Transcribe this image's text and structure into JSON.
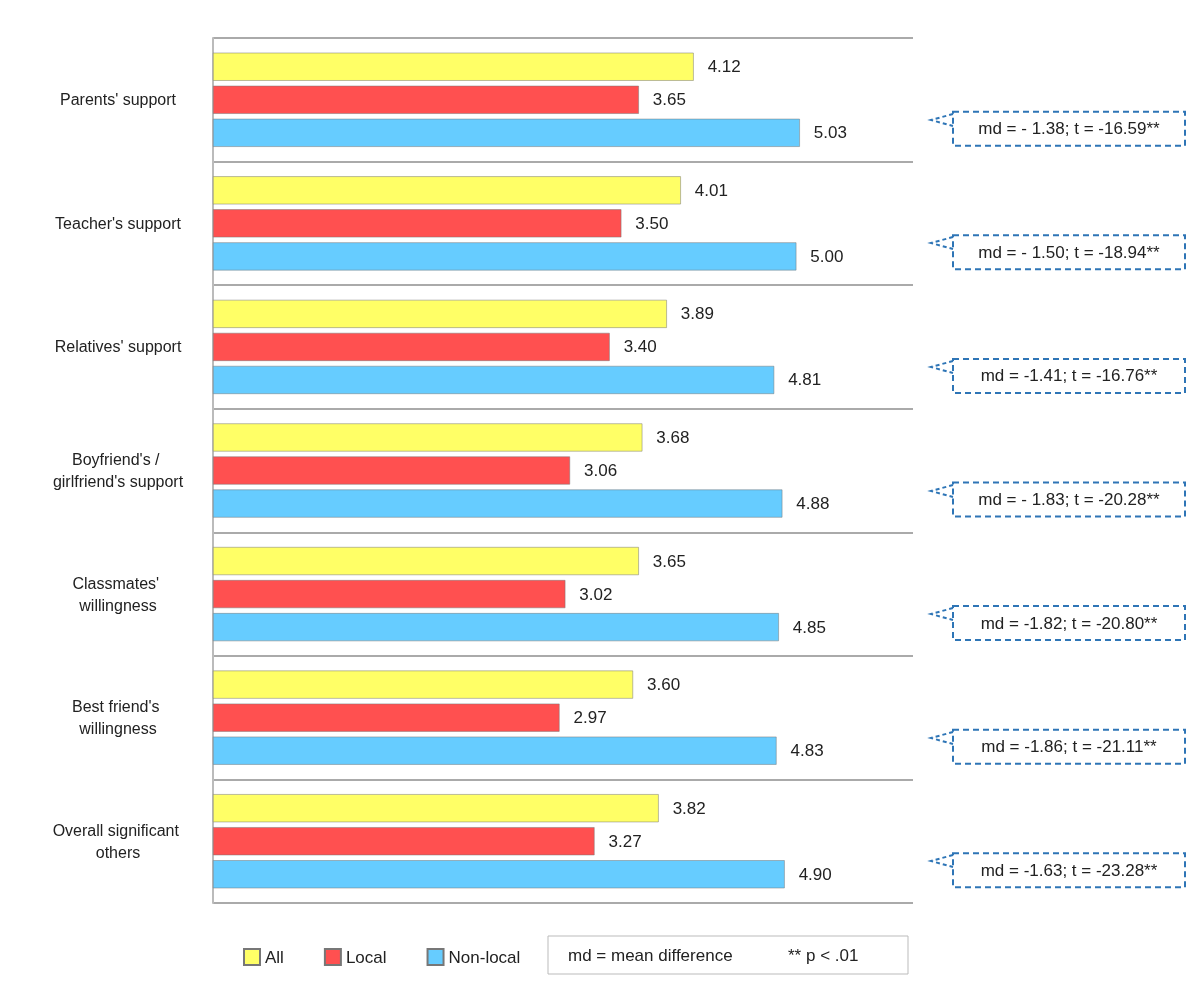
{
  "chart_data": {
    "type": "bar",
    "orientation": "horizontal",
    "categories": [
      "Parents' support",
      "Teacher's support",
      "Relatives' support",
      "Boyfriend's / girlfriend's support",
      "Classmates' willingness",
      "Best friend's willingness",
      "Overall significant others"
    ],
    "series": [
      {
        "name": "All",
        "color": "#ffff66",
        "values": [
          4.12,
          4.01,
          3.89,
          3.68,
          3.65,
          3.6,
          3.82
        ],
        "value_labels": [
          "4.12",
          "4.01",
          "3.89",
          "3.68",
          "3.65",
          "3.60",
          "3.82"
        ]
      },
      {
        "name": "Local",
        "color": "#ff5050",
        "values": [
          3.65,
          3.5,
          3.4,
          3.06,
          3.02,
          2.97,
          3.27
        ],
        "value_labels": [
          "3.65",
          "3.50",
          "3.40",
          "3.06",
          "3.02",
          "2.97",
          "3.27"
        ]
      },
      {
        "name": "Non-local",
        "color": "#66ccff",
        "values": [
          5.03,
          5.0,
          4.81,
          4.88,
          4.85,
          4.83,
          4.9
        ],
        "value_labels": [
          "5.03",
          "5.00",
          "4.81",
          "4.88",
          "4.85",
          "4.83",
          "4.90"
        ]
      }
    ],
    "grid": "y",
    "legend": "bottom",
    "annotations": [
      "md = - 1.38; t = -16.59**",
      "md = - 1.50; t = -18.94**",
      "md = -1.41; t = -16.76**",
      "md = - 1.83; t = -20.28**",
      "md = -1.82; t = -20.80**",
      "md = -1.86; t = -21.11**",
      "md = -1.63; t = -23.28**",
      "md = mean difference",
      "** p < .01"
    ]
  }
}
